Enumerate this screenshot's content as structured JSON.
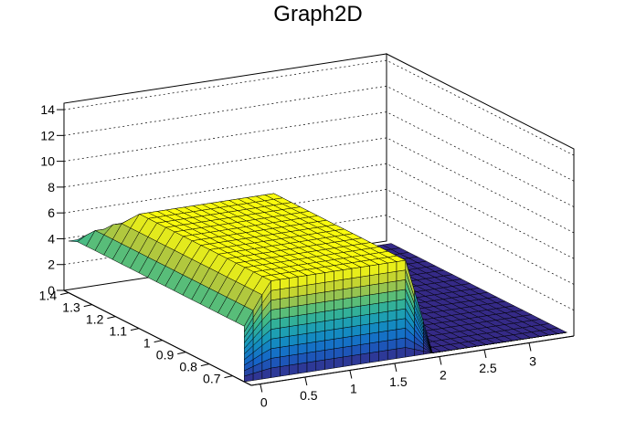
{
  "chart_data": {
    "type": "surface",
    "title": "Graph2D",
    "xlabel": "",
    "ylabel": "",
    "zlabel": "",
    "xlim": [
      -0.1,
      3.5
    ],
    "ylim": [
      0.62,
      1.42
    ],
    "zlim": [
      0,
      14.5
    ],
    "x_ticks": [
      "0",
      "0.5",
      "1",
      "1.5",
      "2",
      "2.5",
      "3"
    ],
    "y_ticks": [
      "0.7",
      "0.8",
      "0.9",
      "1",
      "1.1",
      "1.2",
      "1.3",
      "1.4"
    ],
    "z_ticks": [
      "0",
      "2",
      "4",
      "6",
      "8",
      "10",
      "12",
      "14"
    ],
    "grid": true,
    "colormap": "viridis-like",
    "surface": {
      "x_range": [
        -0.1,
        3.5
      ],
      "y_range": [
        0.65,
        1.4
      ],
      "nx": 36,
      "ny": 20,
      "plateau_height": 7.5,
      "plateau_x_range": [
        -0.1,
        1.7
      ],
      "edge_height_at_y_max": 4.0,
      "edge_height_at_x_min": 4.3,
      "falloff_x_range": [
        1.7,
        2.0
      ],
      "floor_height": 0
    },
    "colors": {
      "low": "#352a87",
      "high": "#f9fb0e"
    }
  }
}
